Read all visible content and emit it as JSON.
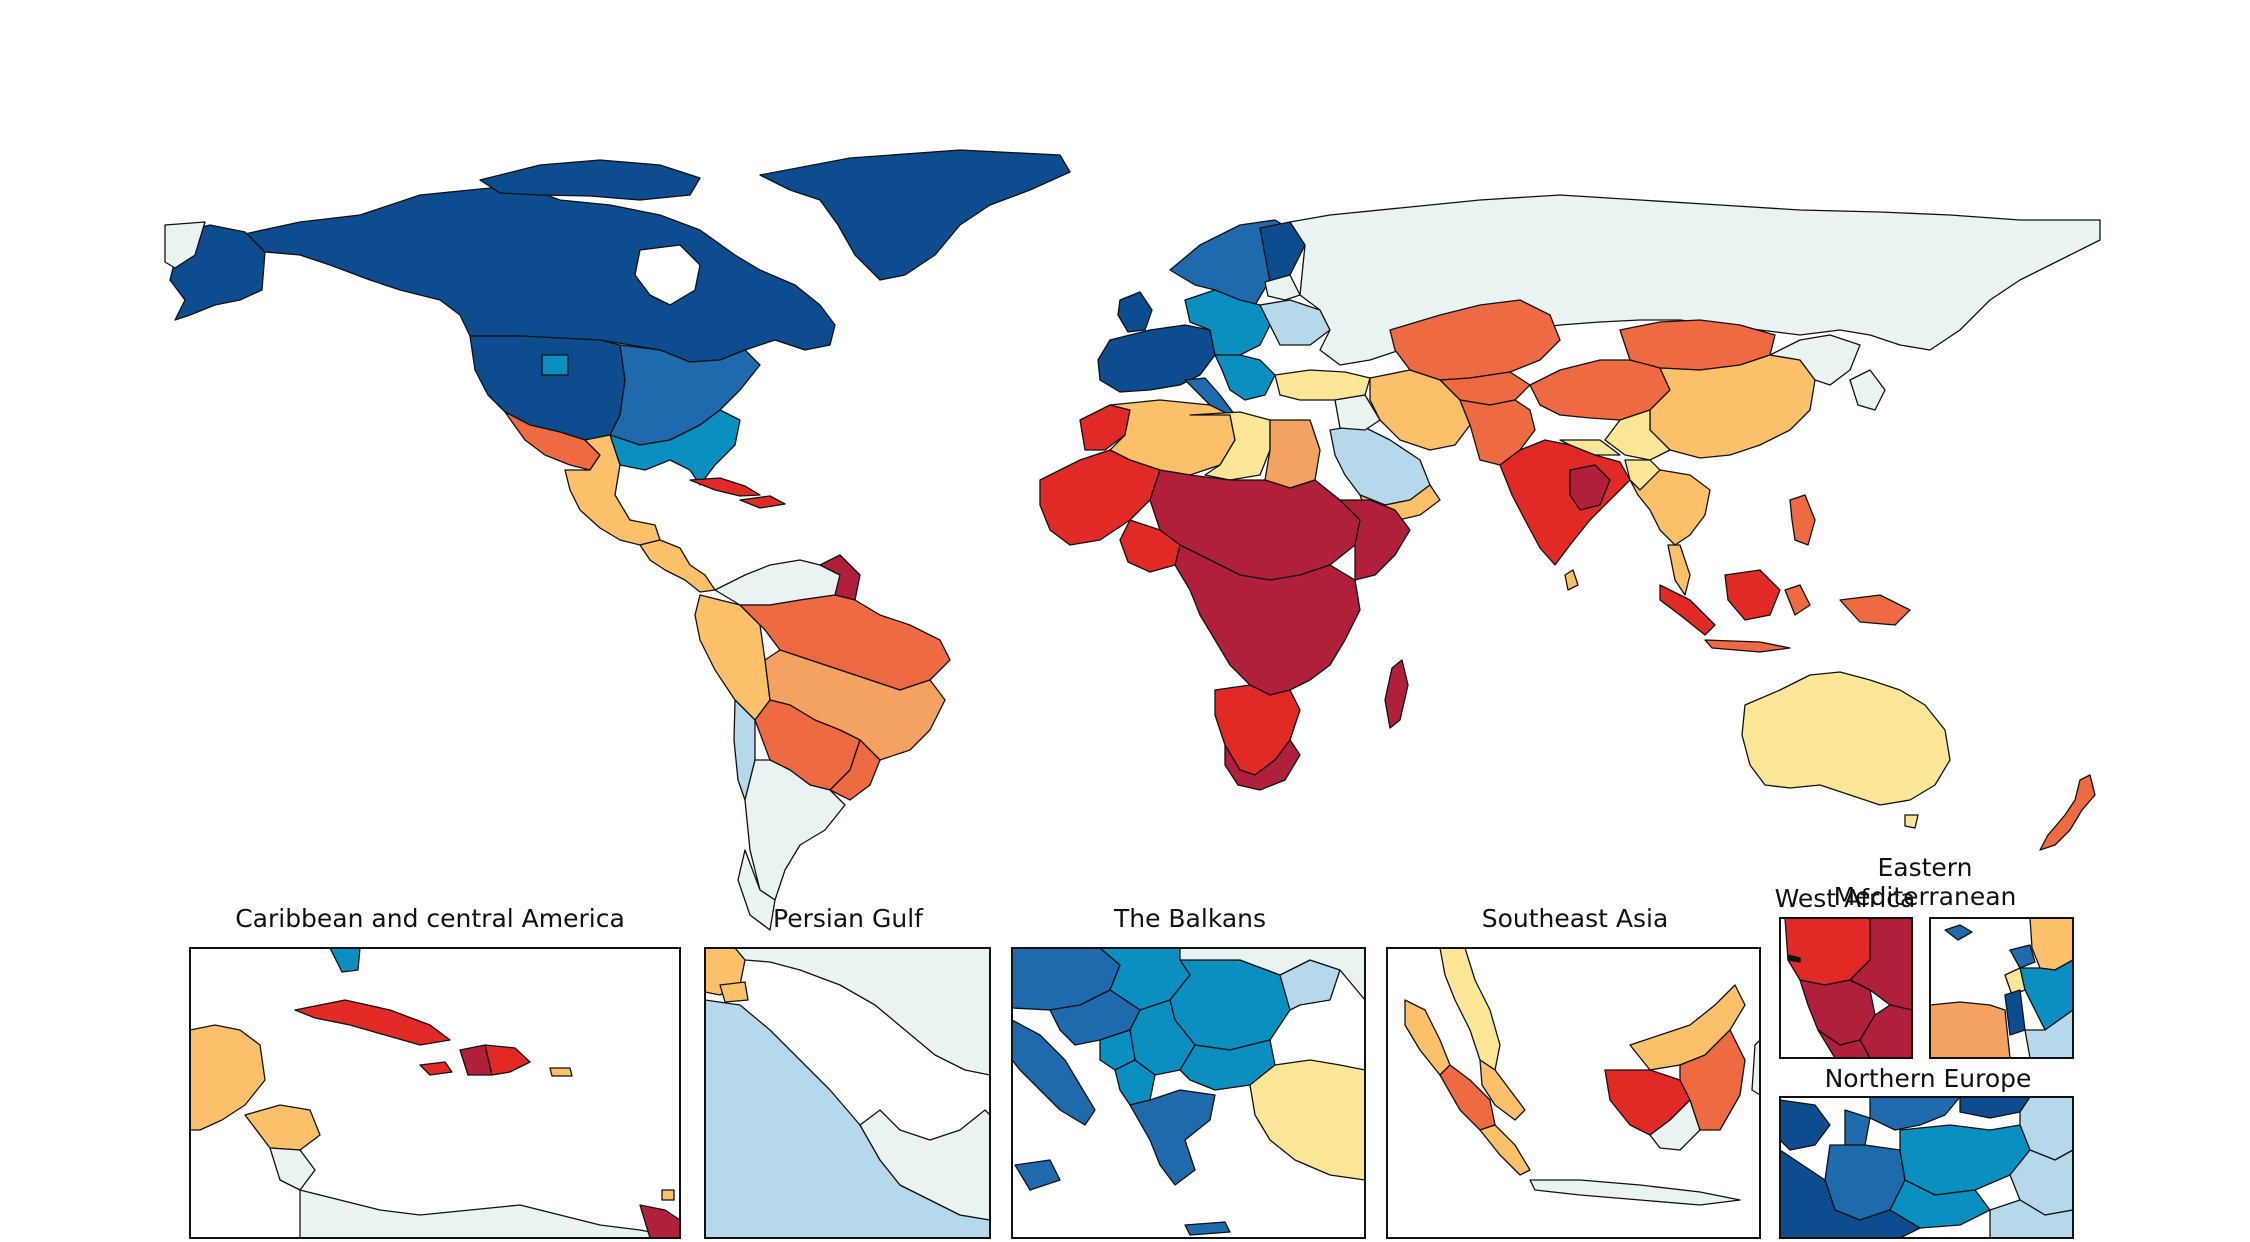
{
  "legend_colors": {
    "lowest": "#0c4c8f",
    "very_low": "#1f6aad",
    "low": "#0a8fc0",
    "low_mid": "#b5d8ea",
    "mid": "#e9f3f1",
    "mid_high": "#fbe697",
    "high_low": "#fcc06a",
    "high": "#f4a262",
    "higher": "#ed6a43",
    "very_high": "#e12a25",
    "highest": "#b0203a"
  },
  "insets": [
    {
      "title": "Caribbean and central America"
    },
    {
      "title": "Persian Gulf"
    },
    {
      "title": "The Balkans"
    },
    {
      "title": "Southeast Asia"
    },
    {
      "title": "West Africa"
    },
    {
      "title": "Eastern Mediterranean"
    },
    {
      "title": "Northern Europe"
    }
  ]
}
